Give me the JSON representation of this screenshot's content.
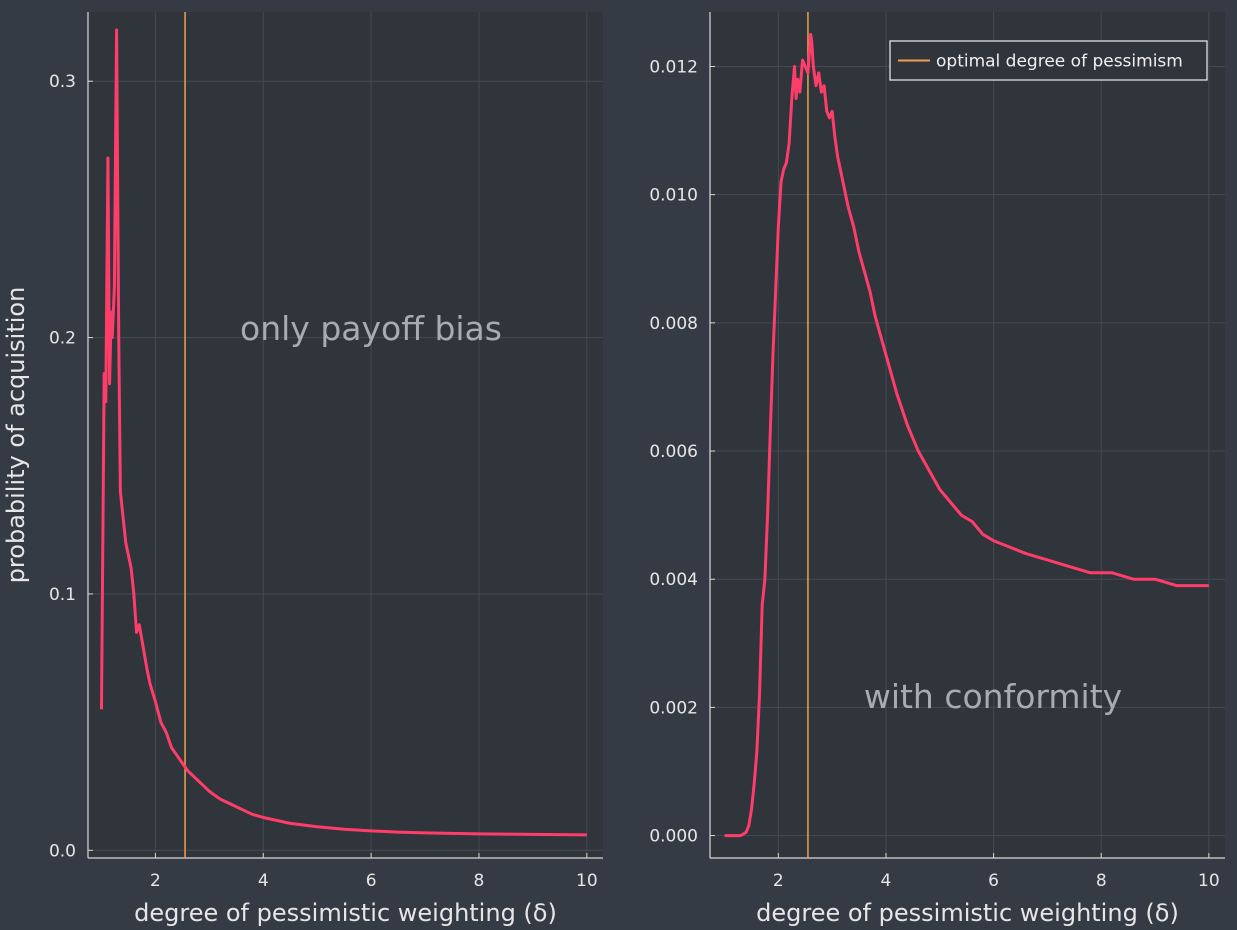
{
  "colors": {
    "background": "#353b45",
    "plot_background": "#30343b",
    "grid": "#454a52",
    "axis": "#d8d8d8",
    "series": "#ff3d6a",
    "vline": "#f0a04b"
  },
  "chart_data": [
    {
      "type": "line",
      "xlabel": "degree of pessimistic weighting (δ)",
      "ylabel": "probability of acquisition",
      "annotation": "only payoff bias",
      "xlim": [
        0.75,
        10.3
      ],
      "ylim": [
        -0.003,
        0.327
      ],
      "xticks": [
        2,
        4,
        6,
        8,
        10
      ],
      "xtick_labels": [
        "2",
        "4",
        "6",
        "8",
        "10"
      ],
      "yticks": [
        0.0,
        0.1,
        0.2,
        0.3
      ],
      "ytick_labels": [
        "0.0",
        "0.1",
        "0.2",
        "0.3"
      ],
      "grid": true,
      "vline_x": 2.55,
      "series": [
        {
          "x": [
            1.0,
            1.05,
            1.08,
            1.12,
            1.15,
            1.18,
            1.2,
            1.24,
            1.28,
            1.32,
            1.35,
            1.4,
            1.45,
            1.5,
            1.55,
            1.6,
            1.65,
            1.7,
            1.75,
            1.8,
            1.85,
            1.9,
            2.0,
            2.1,
            2.2,
            2.3,
            2.4,
            2.5,
            2.6,
            2.8,
            3.0,
            3.2,
            3.5,
            3.8,
            4.0,
            4.5,
            5.0,
            5.5,
            6.0,
            6.5,
            7.0,
            7.5,
            8.0,
            8.5,
            9.0,
            9.5,
            10.0
          ],
          "values": [
            0.055,
            0.186,
            0.175,
            0.27,
            0.182,
            0.21,
            0.2,
            0.22,
            0.32,
            0.2,
            0.14,
            0.13,
            0.12,
            0.115,
            0.11,
            0.1,
            0.085,
            0.088,
            0.082,
            0.076,
            0.07,
            0.065,
            0.058,
            0.05,
            0.046,
            0.04,
            0.037,
            0.034,
            0.031,
            0.027,
            0.023,
            0.02,
            0.017,
            0.014,
            0.0128,
            0.0105,
            0.0092,
            0.0082,
            0.0076,
            0.0071,
            0.0068,
            0.0066,
            0.0064,
            0.0063,
            0.0062,
            0.0061,
            0.006
          ]
        }
      ]
    },
    {
      "type": "line",
      "xlabel": "degree of pessimistic weighting (δ)",
      "ylabel": "",
      "annotation": "with conformity",
      "xlim": [
        0.73,
        10.3
      ],
      "ylim": [
        -0.00035,
        0.01285
      ],
      "xticks": [
        2,
        4,
        6,
        8,
        10
      ],
      "xtick_labels": [
        "2",
        "4",
        "6",
        "8",
        "10"
      ],
      "yticks": [
        0.0,
        0.002,
        0.004,
        0.006,
        0.008,
        0.01,
        0.012
      ],
      "ytick_labels": [
        "0.000",
        "0.002",
        "0.004",
        "0.006",
        "0.008",
        "0.010",
        "0.012"
      ],
      "grid": true,
      "vline_x": 2.55,
      "legend": {
        "label": "optimal degree of pessimism",
        "position": "top-right"
      },
      "series": [
        {
          "x": [
            1.0,
            1.1,
            1.2,
            1.3,
            1.4,
            1.45,
            1.5,
            1.55,
            1.6,
            1.65,
            1.7,
            1.75,
            1.8,
            1.85,
            1.9,
            1.95,
            2.0,
            2.05,
            2.1,
            2.15,
            2.2,
            2.25,
            2.3,
            2.33,
            2.36,
            2.4,
            2.45,
            2.5,
            2.55,
            2.6,
            2.62,
            2.65,
            2.7,
            2.75,
            2.8,
            2.85,
            2.9,
            2.95,
            3.0,
            3.05,
            3.1,
            3.2,
            3.3,
            3.4,
            3.5,
            3.6,
            3.7,
            3.8,
            3.9,
            4.0,
            4.2,
            4.4,
            4.6,
            4.8,
            5.0,
            5.2,
            5.4,
            5.6,
            5.8,
            6.0,
            6.3,
            6.6,
            7.0,
            7.4,
            7.8,
            8.2,
            8.6,
            9.0,
            9.4,
            9.8,
            10.0
          ],
          "values": [
            0.0,
            0.0,
            0.0,
            0.0,
            5e-05,
            0.00015,
            0.0004,
            0.0008,
            0.0013,
            0.0022,
            0.0036,
            0.004,
            0.005,
            0.0063,
            0.0075,
            0.0085,
            0.0095,
            0.0102,
            0.0104,
            0.0105,
            0.0108,
            0.0115,
            0.012,
            0.0115,
            0.0118,
            0.0116,
            0.0121,
            0.012,
            0.0119,
            0.0125,
            0.0124,
            0.012,
            0.0117,
            0.0119,
            0.0116,
            0.0117,
            0.0113,
            0.0112,
            0.0113,
            0.0109,
            0.0106,
            0.0102,
            0.0098,
            0.0095,
            0.0091,
            0.0088,
            0.0085,
            0.0081,
            0.0078,
            0.0075,
            0.0069,
            0.0064,
            0.006,
            0.0057,
            0.0054,
            0.0052,
            0.005,
            0.0049,
            0.0047,
            0.0046,
            0.0045,
            0.0044,
            0.0043,
            0.0042,
            0.0041,
            0.0041,
            0.004,
            0.004,
            0.0039,
            0.0039,
            0.0039
          ]
        }
      ]
    }
  ]
}
